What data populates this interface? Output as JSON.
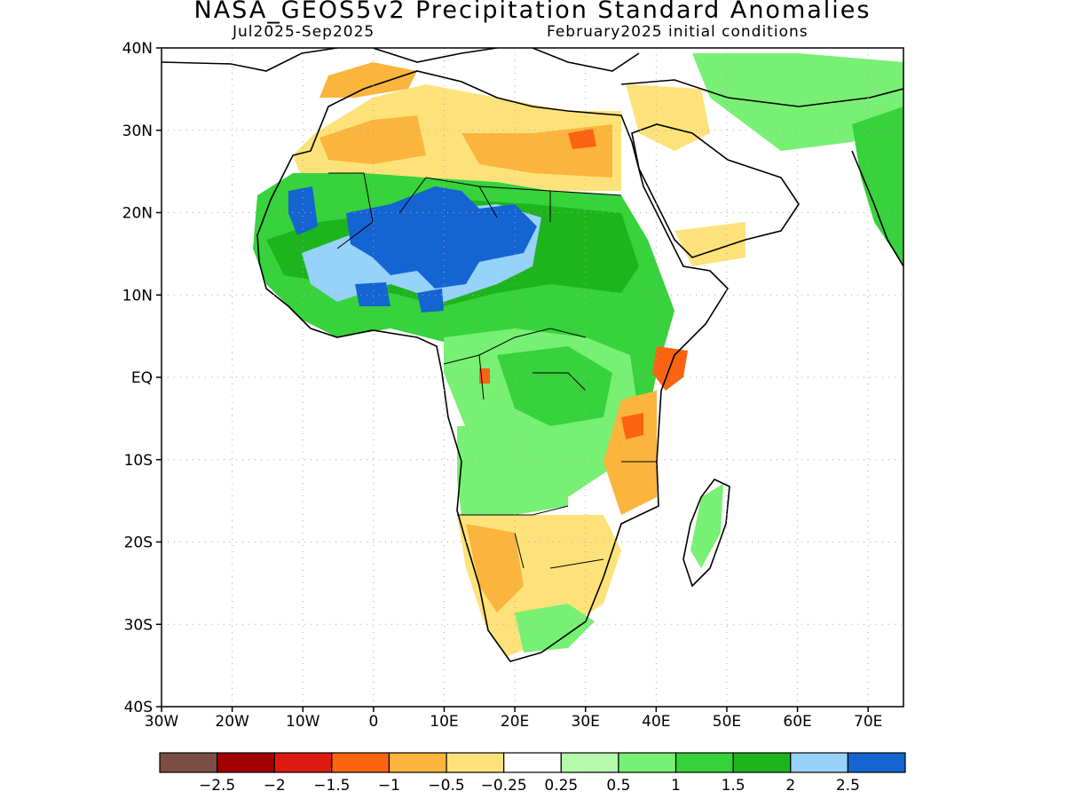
{
  "header": {
    "title": "NASA_GEOS5v2 Precipitation Standard Anomalies",
    "season": "Jul2025-Sep2025",
    "init": "February2025 initial conditions"
  },
  "axes": {
    "lat_labels": [
      "40N",
      "30N",
      "20N",
      "10N",
      "EQ",
      "10S",
      "20S",
      "30S",
      "40S"
    ],
    "lat_values": [
      40,
      30,
      20,
      10,
      0,
      -10,
      -20,
      -30,
      -40
    ],
    "lon_labels": [
      "30W",
      "20W",
      "10W",
      "0",
      "10E",
      "20E",
      "30E",
      "40E",
      "50E",
      "60E",
      "70E"
    ],
    "lon_values": [
      -30,
      -20,
      -10,
      0,
      10,
      20,
      30,
      40,
      50,
      60,
      70
    ],
    "lon_range": [
      -30,
      75
    ],
    "lat_range": [
      -40,
      40
    ],
    "grid": "dotted"
  },
  "colorbar": {
    "colors": [
      "#7a4e43",
      "#a00000",
      "#dc1a10",
      "#fa6410",
      "#fbb43c",
      "#fde27a",
      "#ffffff",
      "#b4faaa",
      "#78f073",
      "#37d23c",
      "#1eb41e",
      "#96d2fa",
      "#1464d2"
    ],
    "labels": [
      "-2.5",
      "-2",
      "-1.5",
      "-1",
      "-0.5",
      "-0.25",
      "0.25",
      "0.5",
      "1",
      "1.5",
      "2",
      "2.5"
    ]
  },
  "palette": {
    "land_outline": "#000000",
    "frame": "#000000"
  }
}
